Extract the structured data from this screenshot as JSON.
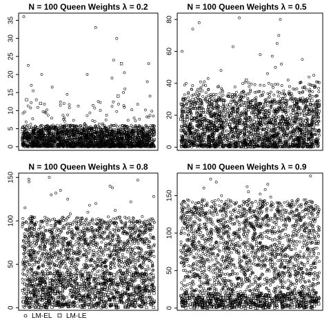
{
  "chart_data": [
    {
      "type": "scatter",
      "title": "N = 100  Queen  Weights  λ = 0.2",
      "xlabel": "",
      "ylabel": "",
      "ylim": [
        -1,
        37
      ],
      "yticks": [
        0,
        5,
        10,
        15,
        20,
        25,
        30,
        35
      ],
      "series": [
        {
          "marker": "circle",
          "typical_values": [
            0,
            6
          ],
          "outliers": [
            36,
            33,
            30,
            24,
            23,
            22.5,
            20.5,
            20,
            20,
            19,
            18,
            17,
            16.5,
            16,
            15.5,
            15,
            14.5,
            14,
            13,
            12.5
          ]
        },
        {
          "marker": "square",
          "typical_values": [
            0,
            5
          ],
          "outliers": [
            23,
            14,
            13,
            12
          ]
        }
      ],
      "grid": false
    },
    {
      "type": "scatter",
      "title": "N = 100  Queen  Weights  λ = 0.5",
      "xlabel": "",
      "ylabel": "",
      "ylim": [
        -2,
        84
      ],
      "yticks": [
        0,
        20,
        40,
        60,
        80
      ],
      "series": [
        {
          "marker": "circle",
          "typical_values": [
            0,
            35
          ],
          "outliers": [
            81,
            80,
            78,
            74,
            70,
            65,
            63,
            60,
            58,
            57,
            55,
            52,
            50,
            48,
            46,
            45,
            44,
            43,
            42,
            41
          ]
        },
        {
          "marker": "square",
          "typical_values": [
            0,
            30
          ],
          "outliers": [
            42
          ]
        }
      ],
      "grid": false
    },
    {
      "type": "scatter",
      "title": "N = 100  Queen  Weights  λ = 0.8",
      "xlabel": "",
      "ylabel": "",
      "ylim": [
        -3,
        155
      ],
      "yticks": [
        0,
        50,
        100,
        150
      ],
      "series": [
        {
          "marker": "circle",
          "typical_values": [
            0,
            100
          ],
          "outliers": [
            150,
            148,
            147,
            145,
            140,
            138,
            135,
            132,
            130,
            128,
            125,
            122,
            120,
            118,
            115,
            112,
            110,
            108,
            105
          ]
        },
        {
          "marker": "square",
          "typical_values": [
            0,
            40
          ],
          "outliers": []
        }
      ],
      "grid": false
    },
    {
      "type": "scatter",
      "title": "N = 100  Queen  Weights  λ = 0.9",
      "xlabel": "",
      "ylabel": "",
      "ylim": [
        -3,
        180
      ],
      "yticks": [
        0,
        50,
        100,
        150
      ],
      "series": [
        {
          "marker": "circle",
          "typical_values": [
            0,
            140
          ],
          "outliers": [
            176,
            172,
            168,
            165,
            162,
            160,
            158,
            155,
            152,
            150,
            148,
            145
          ]
        },
        {
          "marker": "square",
          "typical_values": [
            0,
            20
          ],
          "outliers": []
        }
      ],
      "grid": false
    }
  ],
  "legend": {
    "placement": "bottom-left",
    "items": [
      {
        "marker": "circle",
        "label": "LM-EL"
      },
      {
        "marker": "square",
        "label": "LM-LE"
      }
    ]
  }
}
